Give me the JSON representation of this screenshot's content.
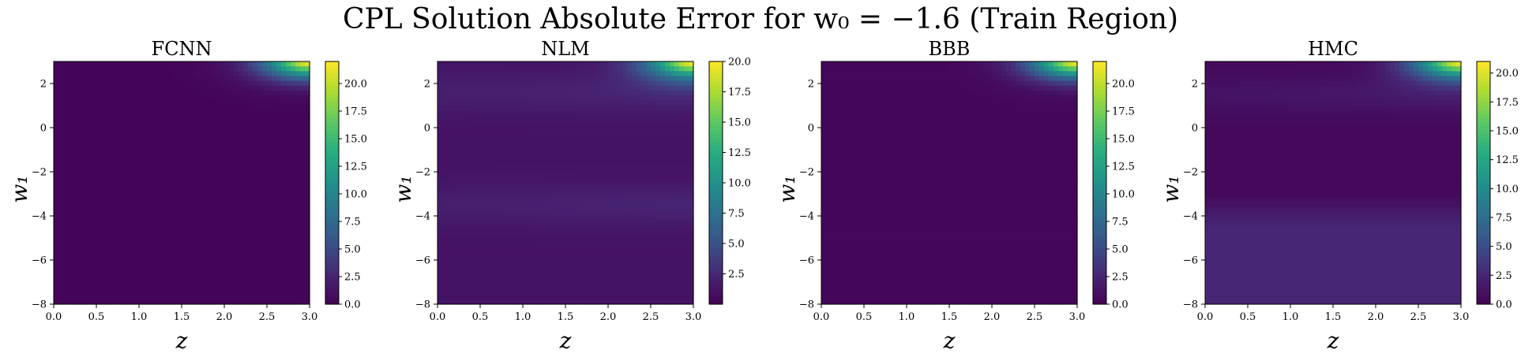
{
  "figure": {
    "title": "CPL Solution Absolute Error for w₀ = −1.6 (Train Region)"
  },
  "chart_data": [
    {
      "type": "heatmap",
      "title": "FCNN",
      "xlabel": "z",
      "ylabel": "w₁",
      "xlim": [
        0.0,
        3.0
      ],
      "ylim": [
        -8,
        3
      ],
      "x_ticks": [
        "0.0",
        "0.5",
        "1.0",
        "1.5",
        "2.0",
        "2.5",
        "3.0"
      ],
      "y_ticks": [
        "2",
        "0",
        "−2",
        "−4",
        "−6",
        "−8"
      ],
      "colorbar": {
        "min": 0.0,
        "max": 22.0,
        "ticks": [
          "0.0",
          "2.5",
          "5.0",
          "7.5",
          "10.0",
          "12.5",
          "15.0",
          "17.5",
          "20.0"
        ]
      },
      "colormap": "viridis",
      "field": {
        "hotspot_z": 3.0,
        "hotspot_w1": 3.0,
        "peak": 22.0,
        "background": 0.3,
        "bands": []
      }
    },
    {
      "type": "heatmap",
      "title": "NLM",
      "xlabel": "z",
      "ylabel": "w₁",
      "xlim": [
        0.0,
        3.0
      ],
      "ylim": [
        -8,
        3
      ],
      "x_ticks": [
        "0.0",
        "0.5",
        "1.0",
        "1.5",
        "2.0",
        "2.5",
        "3.0"
      ],
      "y_ticks": [
        "2",
        "0",
        "−2",
        "−4",
        "−6",
        "−8"
      ],
      "colorbar": {
        "min": 0.0,
        "max": 20.0,
        "ticks": [
          "2.5",
          "5.0",
          "7.5",
          "10.0",
          "12.5",
          "15.0",
          "17.5",
          "20.0"
        ]
      },
      "colormap": "viridis",
      "field": {
        "hotspot_z": 3.0,
        "hotspot_w1": 3.0,
        "peak": 20.0,
        "background": 1.2,
        "bands": [
          1.6,
          -3.5
        ]
      }
    },
    {
      "type": "heatmap",
      "title": "BBB",
      "xlabel": "z",
      "ylabel": "w₁",
      "xlim": [
        0.0,
        3.0
      ],
      "ylim": [
        -8,
        3
      ],
      "x_ticks": [
        "0.0",
        "0.5",
        "1.0",
        "1.5",
        "2.0",
        "2.5",
        "3.0"
      ],
      "y_ticks": [
        "2",
        "0",
        "−2",
        "−4",
        "−6",
        "−8"
      ],
      "colorbar": {
        "min": 0.0,
        "max": 22.0,
        "ticks": [
          "0.0",
          "2.5",
          "5.0",
          "7.5",
          "10.0",
          "12.5",
          "15.0",
          "17.5",
          "20.0"
        ]
      },
      "colormap": "viridis",
      "field": {
        "hotspot_z": 3.0,
        "hotspot_w1": 3.0,
        "peak": 22.0,
        "background": 0.4,
        "bands": []
      }
    },
    {
      "type": "heatmap",
      "title": "HMC",
      "xlabel": "z",
      "ylabel": "w₁",
      "xlim": [
        0.0,
        3.0
      ],
      "ylim": [
        -8,
        3
      ],
      "x_ticks": [
        "0.0",
        "0.5",
        "1.0",
        "1.5",
        "2.0",
        "2.5",
        "3.0"
      ],
      "y_ticks": [
        "2",
        "0",
        "−2",
        "−4",
        "−6",
        "−8"
      ],
      "colorbar": {
        "min": 0.0,
        "max": 21.0,
        "ticks": [
          "0.0",
          "2.5",
          "5.0",
          "7.5",
          "10.0",
          "12.5",
          "15.0",
          "17.5",
          "20.0"
        ]
      },
      "colormap": "viridis",
      "field": {
        "hotspot_z": 3.0,
        "hotspot_w1": 3.0,
        "peak": 21.0,
        "background": 0.5,
        "bands": [
          1.5
        ],
        "lower_region_w1": -3.0,
        "lower_region_level": 2.6
      }
    }
  ]
}
